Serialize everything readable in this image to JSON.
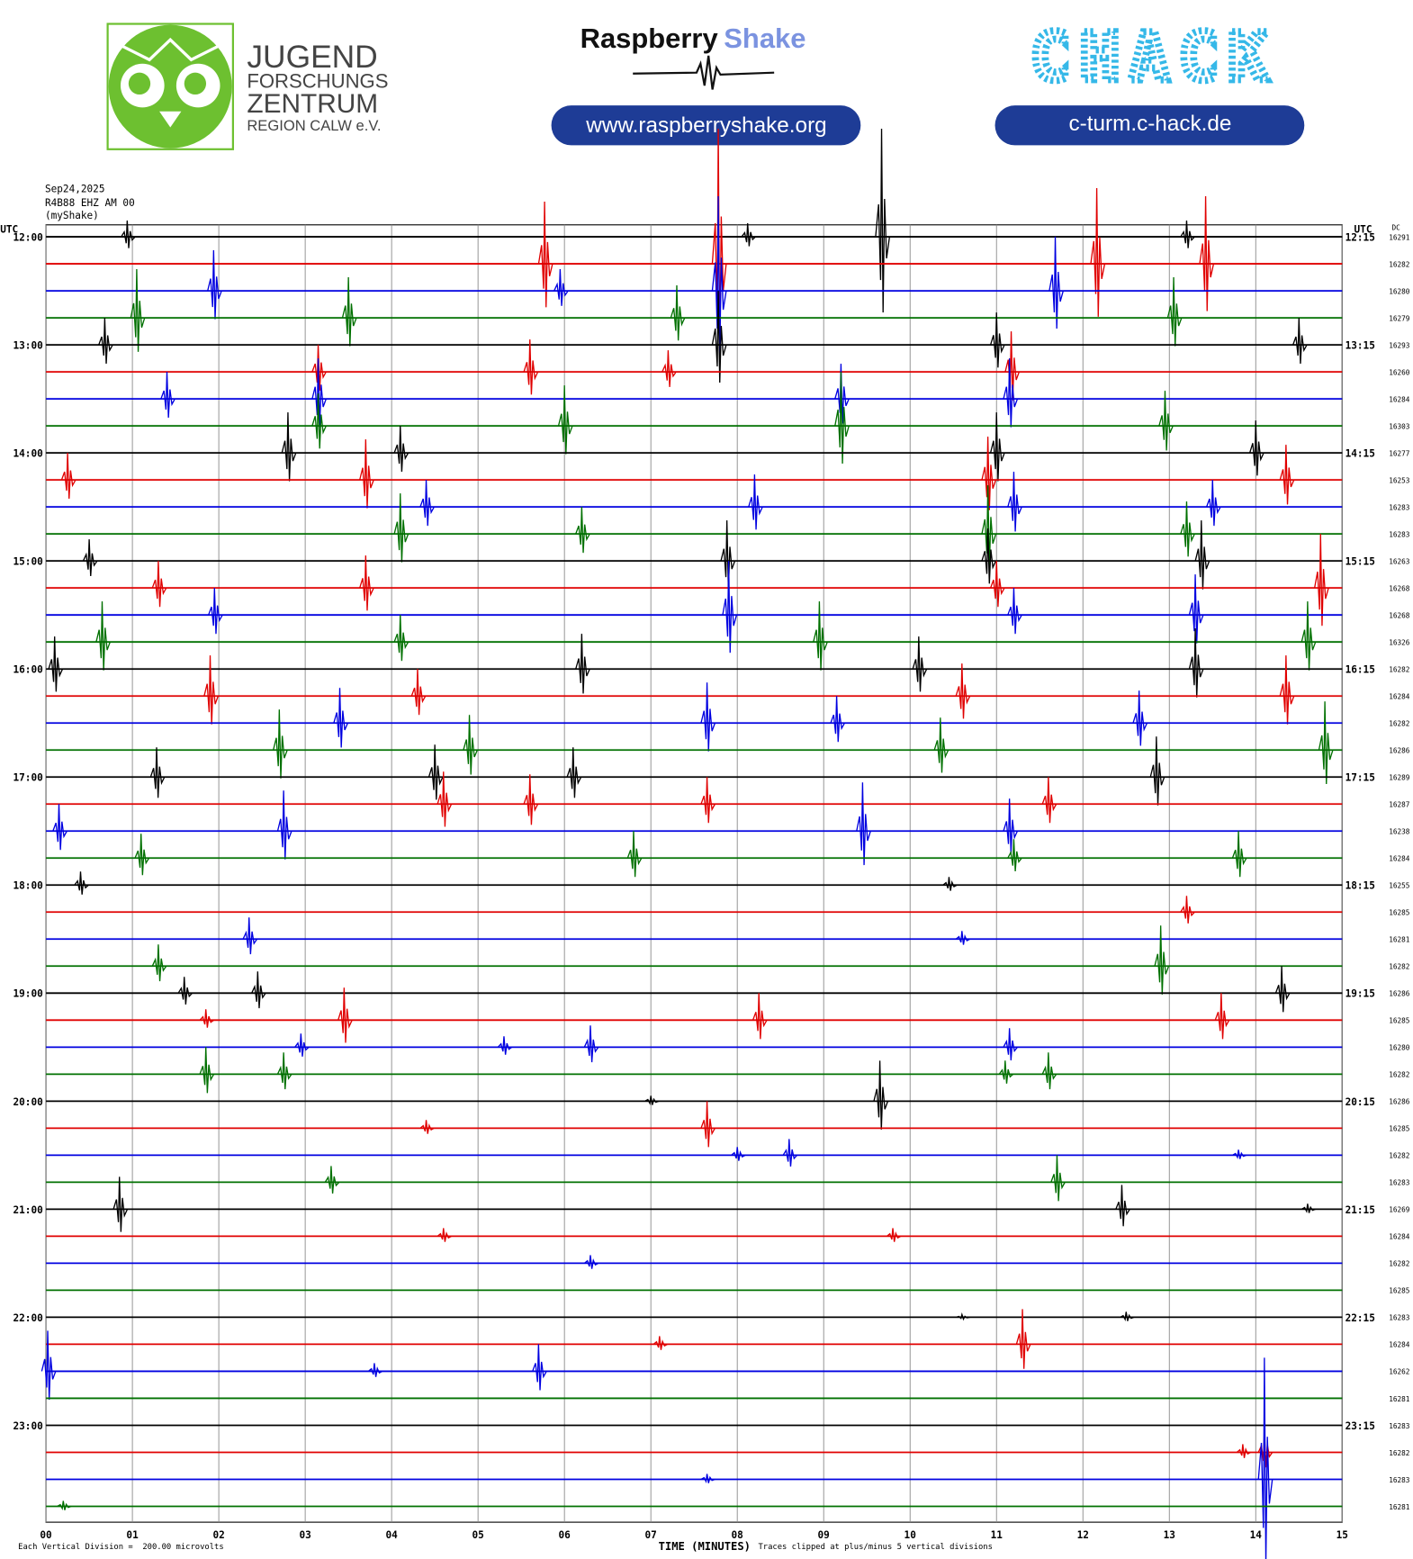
{
  "header": {
    "jugend": "JUGEND",
    "forschungs": "FORSCHUNGS",
    "zentrum": "ZENTRUM",
    "region": "REGION CALW e.V.",
    "rs_1": "Raspberry",
    "rs_2": "Shake",
    "rs_url": "www.raspberryshake.org",
    "chack": "CHACK",
    "chack_url": "c-turm.c-hack.de"
  },
  "chart_data": {
    "type": "helicorder",
    "date": "Sep24,2025",
    "station": "R4B88 EHZ AM 00",
    "source": "(myShake)",
    "left_axis_label": "UTC",
    "right_axis_label": "UTC",
    "dc_label": "DC",
    "xlabel": "TIME (MINUTES)",
    "scale_note": "Each Vertical Division =  200.00 microvolts",
    "clip_note": "Traces clipped at plus/minus 5 vertical divisions",
    "xlim": [
      0,
      15
    ],
    "xticks": [
      {
        "value": 0,
        "label": "00"
      },
      {
        "value": 1,
        "label": "01"
      },
      {
        "value": 2,
        "label": "02"
      },
      {
        "value": 3,
        "label": "03"
      },
      {
        "value": 4,
        "label": "04"
      },
      {
        "value": 5,
        "label": "05"
      },
      {
        "value": 6,
        "label": "06"
      },
      {
        "value": 7,
        "label": "07"
      },
      {
        "value": 8,
        "label": "08"
      },
      {
        "value": 9,
        "label": "09"
      },
      10,
      11,
      12,
      13,
      14,
      15
    ],
    "clip": 5,
    "colors": [
      "#000000",
      "#e00000",
      "#0000e0",
      "#007000"
    ],
    "rows": [
      [
        "12:00",
        "12:15"
      ],
      [
        "13:00",
        "13:15"
      ],
      [
        "14:00",
        "14:15"
      ],
      [
        "15:00",
        "15:15"
      ],
      [
        "16:00",
        "16:15"
      ],
      [
        "17:00",
        "17:15"
      ],
      [
        "18:00",
        "18:15"
      ],
      [
        "19:00",
        "19:15"
      ],
      [
        "20:00",
        "20:15"
      ],
      [
        "21:00",
        "21:15"
      ],
      [
        "22:00",
        "22:15"
      ],
      [
        "23:00",
        "23:15"
      ]
    ],
    "traces": [
      {
        "dc": 16291,
        "spikes": [
          [
            0.94,
            0.6
          ],
          [
            8.12,
            0.5
          ],
          [
            9.67,
            4.0
          ],
          [
            13.2,
            0.6
          ]
        ]
      },
      {
        "dc": 16282,
        "spikes": [
          [
            7.78,
            5
          ],
          [
            5.77,
            2.3
          ],
          [
            12.16,
            2.8
          ],
          [
            13.42,
            2.5
          ]
        ]
      },
      {
        "dc": 16280,
        "spikes": [
          [
            1.94,
            1.5
          ],
          [
            5.95,
            0.8
          ],
          [
            7.78,
            3.5
          ],
          [
            11.68,
            2.0
          ]
        ]
      },
      {
        "dc": 16279,
        "spikes": [
          [
            1.05,
            1.8
          ],
          [
            3.5,
            1.5
          ],
          [
            7.3,
            1.2
          ],
          [
            13.05,
            1.5
          ]
        ]
      },
      {
        "dc": 16293,
        "spikes": [
          [
            0.68,
            1.0
          ],
          [
            7.78,
            2.0
          ],
          [
            11.0,
            1.2
          ],
          [
            14.5,
            1.0
          ]
        ]
      },
      {
        "dc": 16260,
        "spikes": [
          [
            3.15,
            1.0
          ],
          [
            5.6,
            1.2
          ],
          [
            11.17,
            1.5
          ],
          [
            7.2,
            0.8
          ]
        ]
      },
      {
        "dc": 16284,
        "spikes": [
          [
            1.4,
            1.0
          ],
          [
            3.15,
            1.5
          ],
          [
            9.2,
            1.3
          ],
          [
            11.15,
            1.5
          ]
        ]
      },
      {
        "dc": 16303,
        "spikes": [
          [
            3.15,
            1.2
          ],
          [
            6.0,
            1.5
          ],
          [
            9.2,
            2.0
          ],
          [
            12.95,
            1.3
          ]
        ]
      },
      {
        "dc": 16277,
        "spikes": [
          [
            2.8,
            1.5
          ],
          [
            4.1,
            1.0
          ],
          [
            11.0,
            1.5
          ],
          [
            14.0,
            1.2
          ]
        ]
      },
      {
        "dc": 16253,
        "spikes": [
          [
            0.25,
            1.0
          ],
          [
            3.7,
            1.5
          ],
          [
            10.9,
            1.6
          ],
          [
            14.35,
            1.3
          ]
        ]
      },
      {
        "dc": 16283,
        "spikes": [
          [
            4.4,
            1.0
          ],
          [
            8.2,
            1.2
          ],
          [
            11.2,
            1.3
          ],
          [
            13.5,
            1.0
          ]
        ]
      },
      {
        "dc": 16283,
        "spikes": [
          [
            4.1,
            1.5
          ],
          [
            10.9,
            1.8
          ],
          [
            13.2,
            1.2
          ],
          [
            6.2,
            1.0
          ]
        ]
      },
      {
        "dc": 16263,
        "spikes": [
          [
            0.5,
            0.8
          ],
          [
            7.88,
            1.5
          ],
          [
            10.9,
            1.2
          ],
          [
            13.37,
            1.5
          ]
        ]
      },
      {
        "dc": 16268,
        "spikes": [
          [
            1.3,
            1.0
          ],
          [
            3.7,
            1.2
          ],
          [
            11.0,
            1.0
          ],
          [
            14.75,
            2.0
          ]
        ]
      },
      {
        "dc": 16268,
        "spikes": [
          [
            1.95,
            1.0
          ],
          [
            7.9,
            2.0
          ],
          [
            11.2,
            1.0
          ],
          [
            13.3,
            1.5
          ]
        ]
      },
      {
        "dc": 16326,
        "spikes": [
          [
            0.65,
            1.5
          ],
          [
            4.1,
            1.0
          ],
          [
            8.95,
            1.5
          ],
          [
            14.6,
            1.5
          ]
        ]
      },
      {
        "dc": 16282,
        "spikes": [
          [
            0.1,
            1.2
          ],
          [
            6.2,
            1.3
          ],
          [
            10.1,
            1.2
          ],
          [
            13.3,
            1.5
          ]
        ]
      },
      {
        "dc": 16284,
        "spikes": [
          [
            1.9,
            1.5
          ],
          [
            4.3,
            1.0
          ],
          [
            10.6,
            1.2
          ],
          [
            14.35,
            1.5
          ]
        ]
      },
      {
        "dc": 16282,
        "spikes": [
          [
            3.4,
            1.3
          ],
          [
            7.65,
            1.5
          ],
          [
            9.15,
            1.0
          ],
          [
            12.65,
            1.2
          ]
        ]
      },
      {
        "dc": 16286,
        "spikes": [
          [
            2.7,
            1.5
          ],
          [
            4.9,
            1.3
          ],
          [
            10.35,
            1.2
          ],
          [
            14.8,
            1.8
          ]
        ]
      },
      {
        "dc": 16289,
        "spikes": [
          [
            1.28,
            1.1
          ],
          [
            4.5,
            1.2
          ],
          [
            6.1,
            1.1
          ],
          [
            12.85,
            1.5
          ]
        ]
      },
      {
        "dc": 16287,
        "spikes": [
          [
            4.6,
            1.2
          ],
          [
            5.6,
            1.1
          ],
          [
            7.65,
            1.0
          ],
          [
            11.6,
            1.0
          ]
        ]
      },
      {
        "dc": 16238,
        "spikes": [
          [
            0.15,
            1.0
          ],
          [
            2.75,
            1.5
          ],
          [
            9.45,
            1.8
          ],
          [
            11.15,
            1.2
          ]
        ]
      },
      {
        "dc": 16284,
        "spikes": [
          [
            1.1,
            0.9
          ],
          [
            6.8,
            1.0
          ],
          [
            13.8,
            1.0
          ],
          [
            11.2,
            0.7
          ]
        ]
      },
      {
        "dc": 16255,
        "spikes": [
          [
            0.4,
            0.5
          ],
          [
            10.45,
            0.3
          ]
        ]
      },
      {
        "dc": 16285,
        "spikes": [
          [
            13.2,
            0.6
          ]
        ]
      },
      {
        "dc": 16281,
        "spikes": [
          [
            2.35,
            0.8
          ],
          [
            10.6,
            0.3
          ]
        ]
      },
      {
        "dc": 16282,
        "spikes": [
          [
            1.3,
            0.8
          ],
          [
            12.9,
            1.5
          ]
        ]
      },
      {
        "dc": 16286,
        "spikes": [
          [
            1.6,
            0.6
          ],
          [
            2.45,
            0.8
          ],
          [
            14.3,
            1.0
          ]
        ]
      },
      {
        "dc": 16285,
        "spikes": [
          [
            1.85,
            0.4
          ],
          [
            3.45,
            1.2
          ],
          [
            8.25,
            1.0
          ],
          [
            13.6,
            1.0
          ]
        ]
      },
      {
        "dc": 16280,
        "spikes": [
          [
            2.95,
            0.5
          ],
          [
            5.3,
            0.4
          ],
          [
            6.3,
            0.8
          ],
          [
            11.15,
            0.7
          ]
        ]
      },
      {
        "dc": 16282,
        "spikes": [
          [
            1.85,
            1.0
          ],
          [
            2.75,
            0.8
          ],
          [
            11.1,
            0.5
          ],
          [
            11.6,
            0.8
          ]
        ]
      },
      {
        "dc": 16286,
        "spikes": [
          [
            9.65,
            1.5
          ],
          [
            7.0,
            0.2
          ]
        ]
      },
      {
        "dc": 16285,
        "spikes": [
          [
            4.4,
            0.3
          ],
          [
            7.65,
            1.0
          ]
        ]
      },
      {
        "dc": 16282,
        "spikes": [
          [
            8.0,
            0.3
          ],
          [
            8.6,
            0.6
          ],
          [
            13.8,
            0.2
          ]
        ]
      },
      {
        "dc": 16283,
        "spikes": [
          [
            3.3,
            0.6
          ],
          [
            11.7,
            1.0
          ]
        ]
      },
      {
        "dc": 16269,
        "spikes": [
          [
            0.85,
            1.2
          ],
          [
            12.45,
            0.9
          ],
          [
            14.6,
            0.2
          ]
        ]
      },
      {
        "dc": 16284,
        "spikes": [
          [
            4.6,
            0.3
          ],
          [
            9.8,
            0.3
          ]
        ]
      },
      {
        "dc": 16282,
        "spikes": [
          [
            6.3,
            0.3
          ]
        ]
      },
      {
        "dc": 16285,
        "spikes": []
      },
      {
        "dc": 16283,
        "spikes": [
          [
            10.6,
            0.1
          ],
          [
            12.5,
            0.2
          ]
        ]
      },
      {
        "dc": 16284,
        "spikes": [
          [
            7.1,
            0.3
          ],
          [
            11.3,
            1.3
          ]
        ]
      },
      {
        "dc": 16262,
        "spikes": [
          [
            0.02,
            1.5
          ],
          [
            3.8,
            0.3
          ],
          [
            5.7,
            1.0
          ]
        ]
      },
      {
        "dc": 16281,
        "spikes": []
      },
      {
        "dc": 16283,
        "spikes": []
      },
      {
        "dc": 16282,
        "spikes": [
          [
            13.85,
            0.3
          ],
          [
            14.1,
            0.8
          ]
        ]
      },
      {
        "dc": 16283,
        "spikes": [
          [
            7.65,
            0.2
          ],
          [
            14.1,
            4.5
          ]
        ]
      },
      {
        "dc": 16281,
        "spikes": [
          [
            0.2,
            0.2
          ]
        ]
      }
    ]
  }
}
